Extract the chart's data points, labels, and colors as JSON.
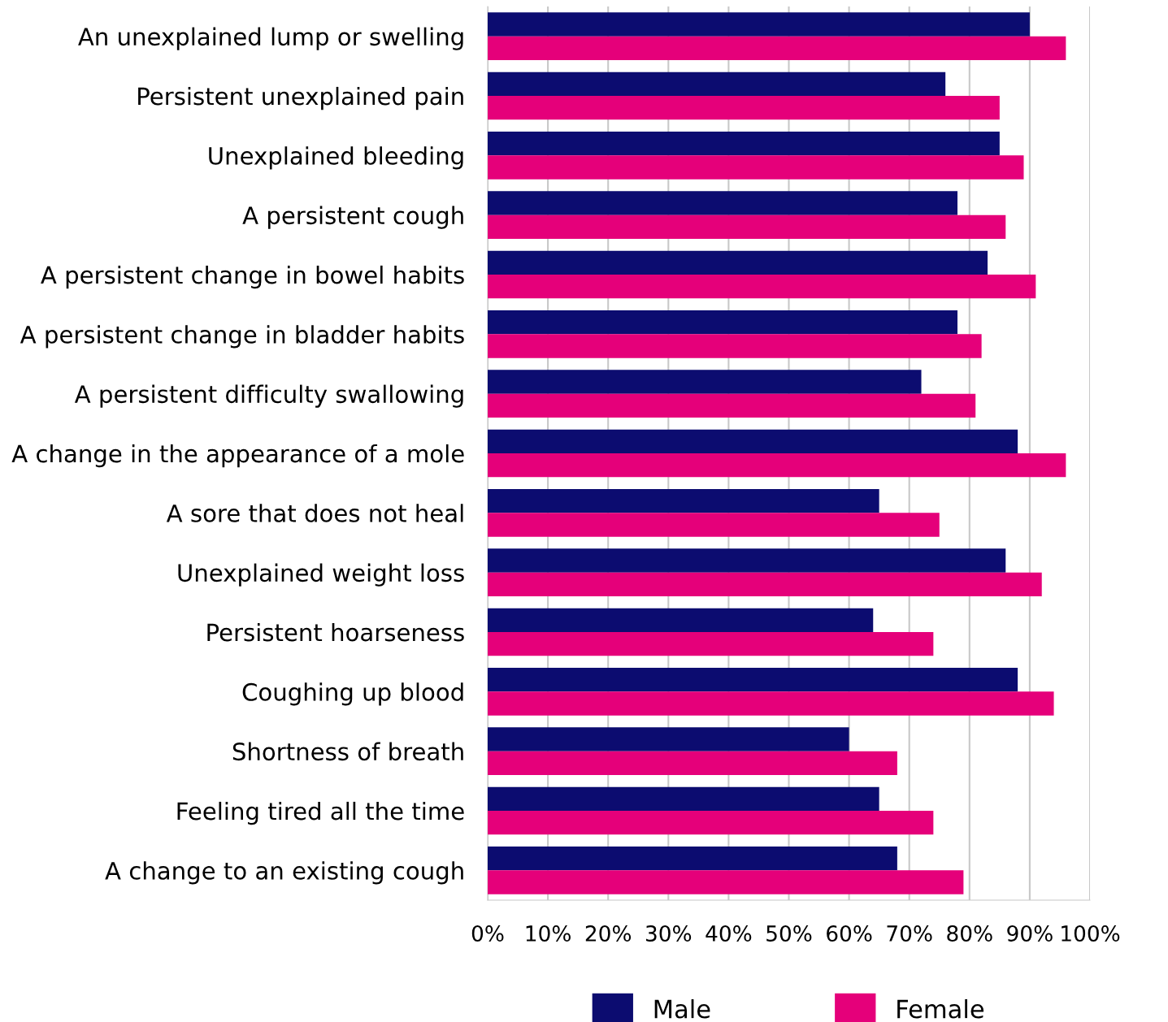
{
  "chart_data": {
    "type": "bar",
    "orientation": "horizontal",
    "categories": [
      "An unexplained lump or swelling",
      "Persistent unexplained pain",
      "Unexplained bleeding",
      "A persistent cough",
      "A persistent change in bowel habits",
      "A persistent change in bladder habits",
      "A persistent difficulty swallowing",
      "A change in the appearance of a mole",
      "A sore that does not heal",
      "Unexplained weight loss",
      "Persistent hoarseness",
      "Coughing up blood",
      "Shortness of breath",
      "Feeling tired all the time",
      "A change to an existing cough"
    ],
    "series": [
      {
        "name": "Male",
        "color": "#0c0c70",
        "values": [
          90,
          76,
          85,
          78,
          83,
          78,
          72,
          88,
          65,
          86,
          64,
          88,
          60,
          65,
          68
        ]
      },
      {
        "name": "Female",
        "color": "#e5007a",
        "values": [
          96,
          85,
          89,
          86,
          91,
          82,
          81,
          96,
          75,
          92,
          74,
          94,
          68,
          74,
          79
        ]
      }
    ],
    "xlim": [
      0,
      100
    ],
    "xticks": [
      {
        "value": 0,
        "label": "0%"
      },
      {
        "value": 10,
        "label": "10%"
      },
      {
        "value": 20,
        "label": "20%"
      },
      {
        "value": 30,
        "label": "30%"
      },
      {
        "value": 40,
        "label": "40%"
      },
      {
        "value": 50,
        "label": "50%"
      },
      {
        "value": 60,
        "label": "60%"
      },
      {
        "value": 70,
        "label": "70%"
      },
      {
        "value": 80,
        "label": "80%"
      },
      {
        "value": 90,
        "label": "90%"
      },
      {
        "value": 100,
        "label": "100%"
      }
    ],
    "grid": "x",
    "legend": "bottom"
  }
}
